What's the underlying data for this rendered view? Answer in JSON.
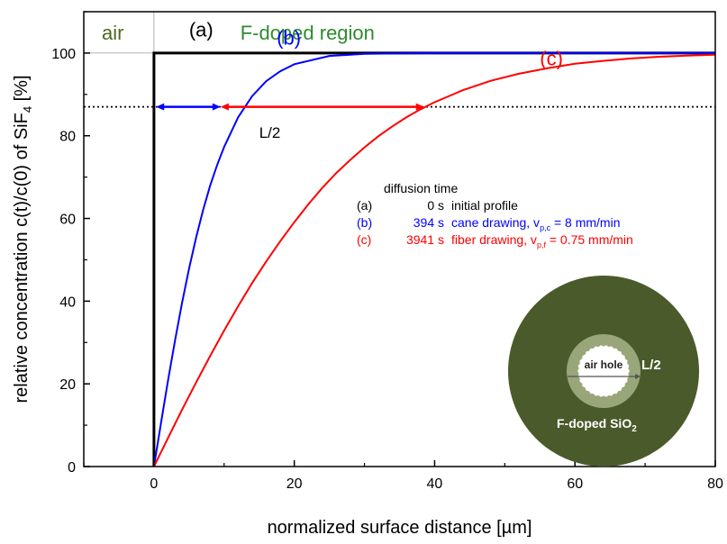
{
  "chart_data": {
    "type": "line",
    "xlabel": "normalized surface distance  [µm]",
    "ylabel_prefix": "relative concentration c(t)/c(0) of SiF",
    "ylabel_sub": "4",
    "ylabel_suffix": " [%]",
    "xlim": [
      -10,
      80
    ],
    "ylim": [
      0,
      110
    ],
    "xticks": [
      0,
      20,
      40,
      60,
      80
    ],
    "yticks": [
      0,
      20,
      40,
      60,
      80,
      100
    ],
    "grid": false,
    "regions": {
      "air": "air",
      "doped": "F-doped region"
    },
    "series": [
      {
        "label": "(a)",
        "color": "#000000",
        "x": [
          0,
          0,
          80
        ],
        "y": [
          0,
          100,
          100
        ]
      },
      {
        "label": "(b)",
        "color": "#0000ff",
        "x": [
          0,
          1,
          2,
          3,
          4,
          5,
          6,
          7,
          8,
          9,
          10,
          12,
          14,
          16,
          18,
          20,
          25,
          30,
          40,
          60,
          80
        ],
        "y": [
          0,
          10.5,
          20.8,
          30.5,
          39.5,
          47.8,
          55.3,
          62.0,
          67.9,
          72.9,
          77.3,
          84.5,
          89.6,
          93.2,
          95.6,
          97.3,
          99.3,
          99.8,
          100,
          100,
          100
        ]
      },
      {
        "label": "(c)",
        "color": "#ff0000",
        "x": [
          0,
          2,
          4,
          6,
          8,
          10,
          12,
          14,
          16,
          18,
          20,
          22,
          24,
          26,
          28,
          30,
          32,
          34,
          36,
          38,
          40,
          44,
          48,
          52,
          56,
          60,
          64,
          68,
          72,
          76,
          80
        ],
        "y": [
          0,
          6.9,
          13.7,
          20.3,
          26.7,
          32.9,
          38.8,
          44.4,
          49.6,
          54.5,
          59.1,
          63.4,
          67.4,
          71.0,
          74.2,
          77.2,
          79.9,
          82.3,
          84.5,
          86.4,
          88.1,
          91.0,
          93.3,
          95.0,
          96.3,
          97.4,
          98.1,
          98.7,
          99.1,
          99.4,
          99.6
        ]
      }
    ],
    "dotted_line_y": 87,
    "arrows": [
      {
        "color": "#0000ff",
        "x1": 0.3,
        "x2": 9.5,
        "y": 87
      },
      {
        "color": "#ff0000",
        "x1": 9.5,
        "x2": 38.5,
        "y": 87
      }
    ],
    "annotations": [
      {
        "text": "(a)",
        "x": 5,
        "y": 104,
        "color": "#000000",
        "size": 22
      },
      {
        "text": "(b)",
        "x": 17.5,
        "y": 102,
        "color": "#0000ff",
        "size": 22
      },
      {
        "text": "(c)",
        "x": 55,
        "y": 97,
        "color": "#ff0000",
        "size": 22
      },
      {
        "text": "L/2",
        "x": 15,
        "y": 79.5,
        "color": "#000000",
        "size": 17
      }
    ],
    "legend": {
      "title": "diffusion time",
      "rows": [
        {
          "id": "(a)",
          "time": "0 s",
          "desc": "initial profile",
          "sub": "",
          "desc_end": "",
          "color": "#000000"
        },
        {
          "id": "(b)",
          "time": "394 s",
          "desc": "cane drawing, v",
          "sub": "p,c",
          "desc_end": " = 8 mm/min",
          "color": "#0000ff"
        },
        {
          "id": "(c)",
          "time": "3941 s",
          "desc": "fiber drawing, v",
          "sub": "p,f",
          "desc_end": " = 0.75 mm/min",
          "color": "#ff0000"
        }
      ]
    },
    "inset": {
      "center": "air hole",
      "ring_label": "L/2",
      "outer_label_main": "F-doped SiO",
      "outer_label_sub": "2",
      "outer_color": "#4b5a2a",
      "ring_color": "#98a679"
    }
  }
}
